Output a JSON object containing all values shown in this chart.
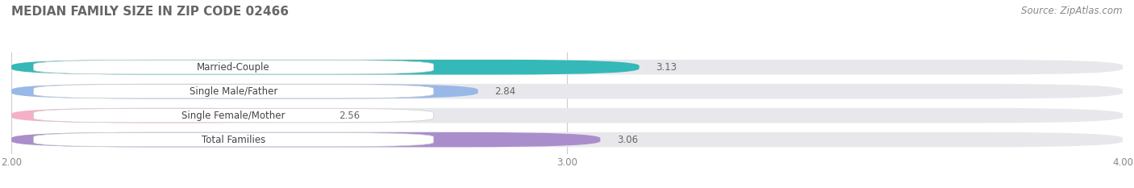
{
  "title": "MEDIAN FAMILY SIZE IN ZIP CODE 02466",
  "source": "Source: ZipAtlas.com",
  "categories": [
    "Married-Couple",
    "Single Male/Father",
    "Single Female/Mother",
    "Total Families"
  ],
  "values": [
    3.13,
    2.84,
    2.56,
    3.06
  ],
  "bar_colors": [
    "#35b8b8",
    "#99b8e8",
    "#f5afc8",
    "#aa8ecc"
  ],
  "xlim": [
    2.0,
    4.0
  ],
  "xticks": [
    2.0,
    3.0,
    4.0
  ],
  "xtick_labels": [
    "2.00",
    "3.00",
    "4.00"
  ],
  "background_color": "#ffffff",
  "bar_bg_color": "#e8e8ec",
  "title_fontsize": 11,
  "label_fontsize": 8.5,
  "value_fontsize": 8.5,
  "source_fontsize": 8.5,
  "bar_height": 0.62,
  "bar_spacing": 1.0
}
